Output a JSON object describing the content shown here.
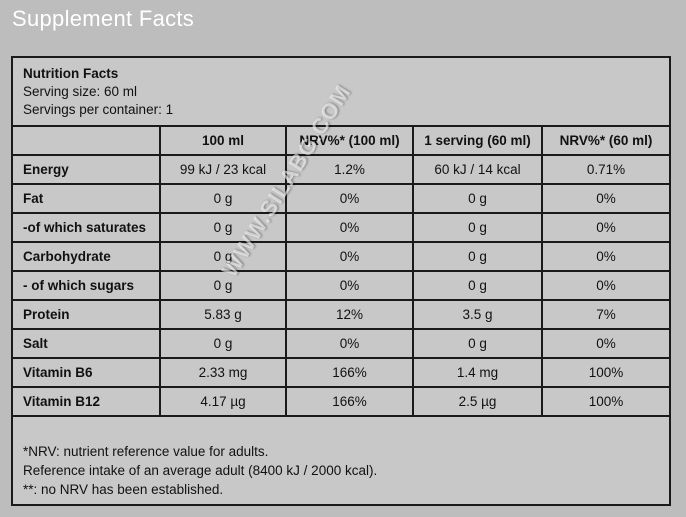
{
  "page_title": "Supplement Facts",
  "header": {
    "title": "Nutrition Facts",
    "serving_size": "Serving size: 60 ml",
    "servings_per_container": "Servings per container: 1"
  },
  "table": {
    "columns": [
      "",
      "100 ml",
      "NRV%* (100 ml)",
      "1 serving (60 ml)",
      "NRV%*  (60 ml)"
    ],
    "rows": [
      {
        "label": "Energy",
        "cells": [
          "99 kJ / 23 kcal",
          "1.2%",
          "60 kJ / 14 kcal",
          "0.71%"
        ]
      },
      {
        "label": "Fat",
        "cells": [
          "0 g",
          "0%",
          "0 g",
          "0%"
        ]
      },
      {
        "label": "-of which saturates",
        "cells": [
          "0 g",
          "0%",
          "0 g",
          "0%"
        ]
      },
      {
        "label": "Carbohydrate",
        "cells": [
          "0 g",
          "0%",
          "0 g",
          "0%"
        ]
      },
      {
        "label": "- of which sugars",
        "cells": [
          "0 g",
          "0%",
          "0 g",
          "0%"
        ]
      },
      {
        "label": "Protein",
        "cells": [
          "5.83 g",
          "12%",
          "3.5 g",
          "7%"
        ]
      },
      {
        "label": "Salt",
        "cells": [
          "0 g",
          "0%",
          "0 g",
          "0%"
        ]
      },
      {
        "label": "Vitamin B6",
        "cells": [
          "2.33 mg",
          "166%",
          "1.4 mg",
          "100%"
        ]
      },
      {
        "label": "Vitamin B12",
        "cells": [
          "4.17 µg",
          "166%",
          "2.5 µg",
          "100%"
        ]
      }
    ]
  },
  "footnotes": [
    "*NRV: nutrient reference value for adults.",
    "Reference intake of an average adult (8400 kJ / 2000 kcal).",
    "**: no NRV has been established."
  ],
  "watermark": "WWW.SILABG.COM"
}
